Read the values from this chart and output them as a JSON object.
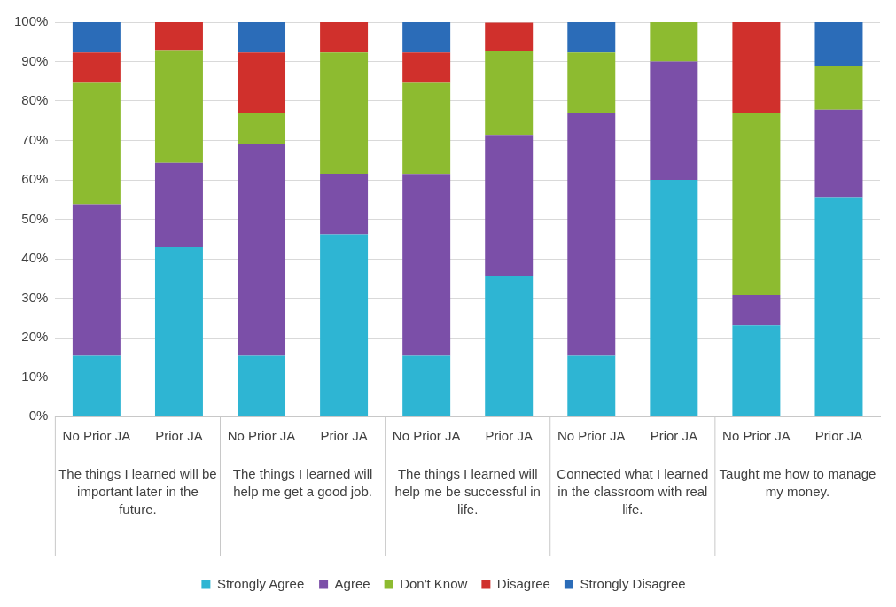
{
  "chart_data": {
    "type": "bar",
    "stacked": true,
    "categories": [
      "No Prior JA",
      "Prior JA",
      "No Prior JA",
      "Prior JA",
      "No Prior JA",
      "Prior JA",
      "No Prior JA",
      "Prior JA",
      "No Prior JA",
      "Prior JA"
    ],
    "annotations": [
      "The things I learned will be important later in the future.",
      "The things I learned will help me get a good job.",
      "The things I learned will help me be successful in life.",
      "Connected what I learned in the classroom with real life.",
      "Taught me how to manage my money."
    ],
    "series": [
      {
        "name": "Strongly Agree",
        "color": "#2eb5d3",
        "values": [
          15.4,
          42.9,
          15.4,
          46.2,
          15.4,
          35.7,
          15.4,
          60,
          23.1,
          55.6
        ]
      },
      {
        "name": "Agree",
        "color": "#7b4fa8",
        "values": [
          38.4,
          21.4,
          53.8,
          15.4,
          46.1,
          35.7,
          61.5,
          30,
          7.7,
          22.2
        ]
      },
      {
        "name": "Don't Know",
        "color": "#8dbb30",
        "values": [
          30.8,
          28.6,
          7.7,
          30.7,
          23.1,
          21.4,
          15.4,
          10,
          46.1,
          11.1
        ]
      },
      {
        "name": "Disagree",
        "color": "#d0302c",
        "values": [
          7.7,
          7.1,
          15.4,
          7.7,
          7.7,
          7.1,
          0,
          0,
          23.1,
          0
        ]
      },
      {
        "name": "Strongly Disagree",
        "color": "#2b6cb8",
        "values": [
          7.7,
          0,
          7.7,
          0,
          7.7,
          0,
          7.7,
          0,
          0,
          11.1
        ]
      }
    ],
    "ylim": [
      0,
      100
    ],
    "yticks": [
      {
        "value": 0,
        "label": "0%"
      },
      {
        "value": 10,
        "label": "10%"
      },
      {
        "value": 20,
        "label": "20%"
      },
      {
        "value": 30,
        "label": "30%"
      },
      {
        "value": 40,
        "label": "40%"
      },
      {
        "value": 50,
        "label": "50%"
      },
      {
        "value": 60,
        "label": "60%"
      },
      {
        "value": 70,
        "label": "70%"
      },
      {
        "value": 80,
        "label": "80%"
      },
      {
        "value": 90,
        "label": "90%"
      },
      {
        "value": 100,
        "label": "100%"
      }
    ],
    "grid": "y",
    "legend": "bottom"
  }
}
